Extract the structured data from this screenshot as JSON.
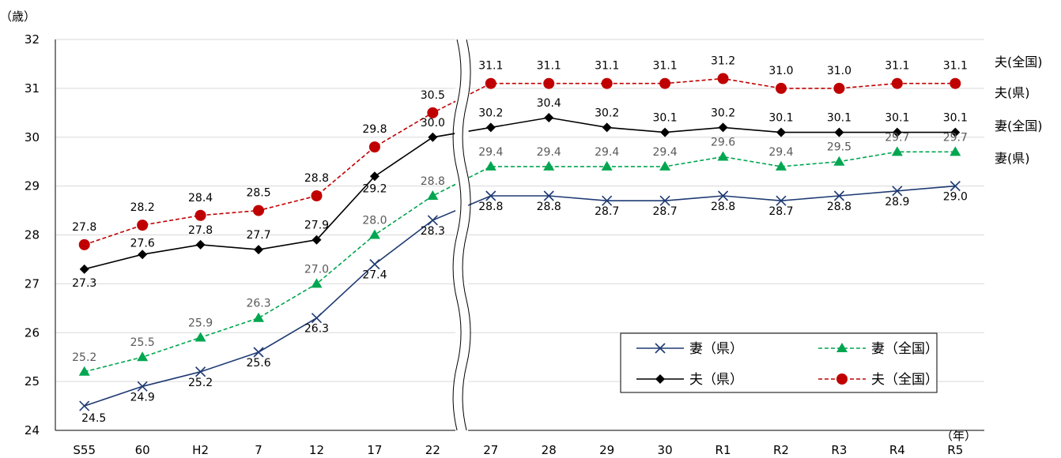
{
  "chart_data": {
    "type": "line",
    "ylabel": "（歳）",
    "xlabel": "（年）",
    "ylim": [
      24,
      32
    ],
    "yticks": [
      24,
      25,
      26,
      27,
      28,
      29,
      30,
      31,
      32
    ],
    "categories": [
      "S55",
      "60",
      "H2",
      "7",
      "12",
      "17",
      "22",
      "27",
      "28",
      "29",
      "30",
      "R1",
      "R2",
      "R3",
      "R4",
      "R5"
    ],
    "axis_break_after": "22",
    "grid": true,
    "legend_position": "bottom-right",
    "series": [
      {
        "name": "妻（県）",
        "color": "#1f3a73",
        "marker": "x",
        "dash": "solid",
        "values": [
          24.5,
          24.9,
          25.2,
          25.6,
          26.3,
          27.4,
          28.3,
          28.8,
          28.8,
          28.7,
          28.7,
          28.8,
          28.7,
          28.8,
          28.9,
          29.0
        ]
      },
      {
        "name": "妻（全国）",
        "color": "#00a650",
        "marker": "triangle",
        "dash": "dashed",
        "values": [
          25.2,
          25.5,
          25.9,
          26.3,
          27.0,
          28.0,
          28.8,
          29.4,
          29.4,
          29.4,
          29.4,
          29.6,
          29.4,
          29.5,
          29.7,
          29.7
        ]
      },
      {
        "name": "夫（県）",
        "color": "#000000",
        "marker": "diamond",
        "dash": "solid",
        "values": [
          27.3,
          27.6,
          27.8,
          27.7,
          27.9,
          29.2,
          30.0,
          30.2,
          30.4,
          30.2,
          30.1,
          30.2,
          30.1,
          30.1,
          30.1,
          30.1
        ]
      },
      {
        "name": "夫（全国）",
        "color": "#c00000",
        "marker": "circle",
        "dash": "dashed",
        "values": [
          27.8,
          28.2,
          28.4,
          28.5,
          28.8,
          29.8,
          30.5,
          31.1,
          31.1,
          31.1,
          31.1,
          31.2,
          31.0,
          31.0,
          31.1,
          31.1
        ]
      }
    ],
    "side_labels": [
      "夫(全国)",
      "夫(県)",
      "妻(全国)",
      "妻(県)"
    ]
  }
}
